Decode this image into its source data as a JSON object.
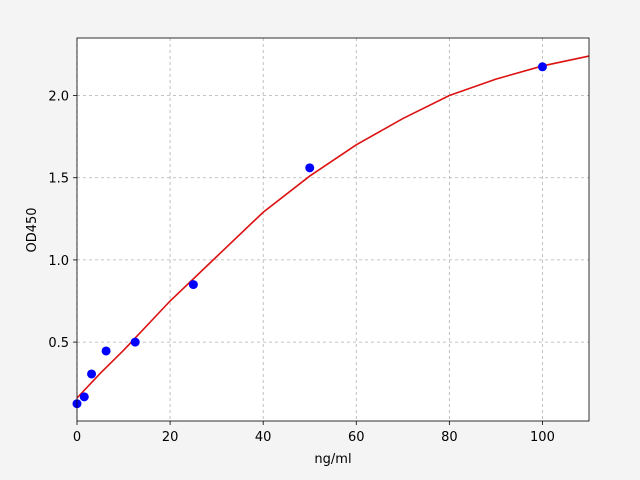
{
  "chart_data": {
    "type": "scatter",
    "xlabel": "ng/ml",
    "ylabel": "OD450",
    "xlim": [
      0,
      110
    ],
    "ylim": [
      0.02,
      2.35
    ],
    "xticks": [
      0,
      20,
      40,
      60,
      80,
      100
    ],
    "yticks": [
      0.5,
      {
        "value": 1.0,
        "label": "1.0"
      },
      1.5,
      {
        "value": 2.0,
        "label": "2.0"
      }
    ],
    "grid": true,
    "series": [
      {
        "type": "scatter",
        "color": "#0000ff",
        "x": [
          0,
          1.56,
          3.125,
          6.25,
          12.5,
          25,
          50,
          100
        ],
        "y": [
          0.125,
          0.167,
          0.306,
          0.446,
          0.5,
          0.85,
          1.56,
          2.175
        ]
      },
      {
        "type": "line",
        "color": "#dd1111",
        "x": [
          0,
          5,
          10,
          20,
          30,
          40,
          50,
          60,
          70,
          80,
          90,
          100,
          110
        ],
        "y": [
          0.16,
          0.31,
          0.45,
          0.75,
          1.02,
          1.29,
          1.51,
          1.7,
          1.86,
          2.0,
          2.1,
          2.18,
          2.24
        ]
      }
    ]
  }
}
